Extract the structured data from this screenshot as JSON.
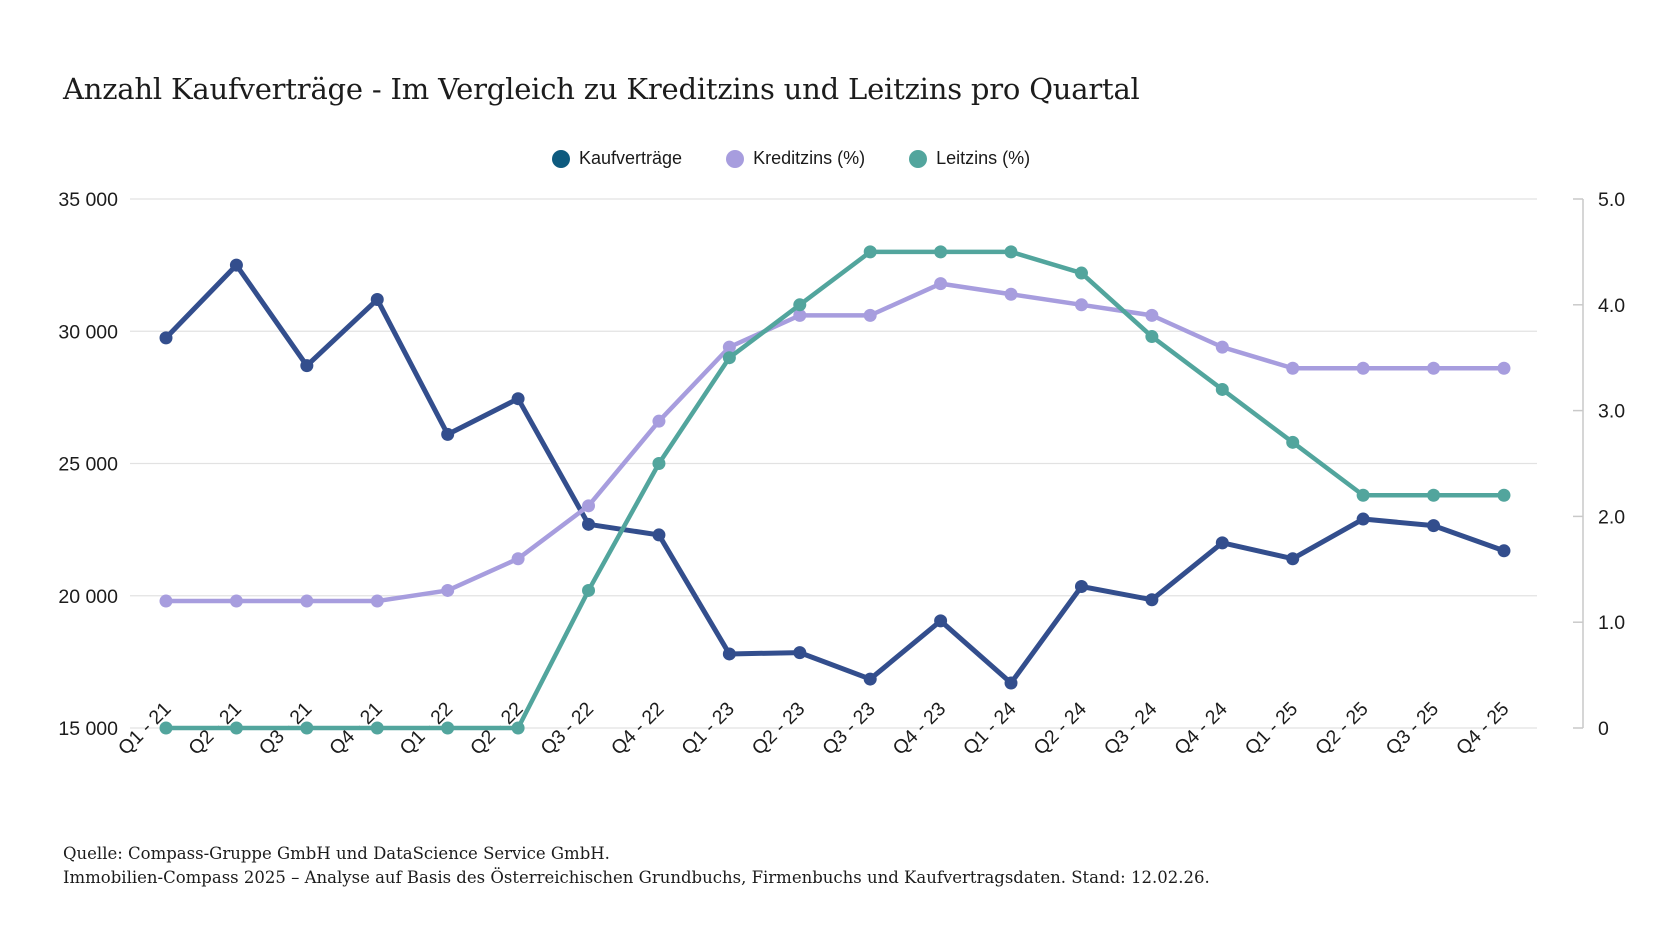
{
  "page": {
    "background": "#ffffff"
  },
  "chart_data": {
    "type": "line",
    "title": "Anzahl Kaufverträge - Im Vergleich zu Kreditzins und Leitzins pro Quartal",
    "categories": [
      "Q1 - 21",
      "Q2 - 21",
      "Q3 - 21",
      "Q4 - 21",
      "Q1 - 22",
      "Q2 - 22",
      "Q3 - 22",
      "Q4 - 22",
      "Q1 - 23",
      "Q2 - 23",
      "Q3 - 23",
      "Q4 - 23",
      "Q1 - 24",
      "Q2 - 24",
      "Q3 - 24",
      "Q4 - 24",
      "Q1 - 25",
      "Q2 - 25",
      "Q3 - 25",
      "Q4 - 25"
    ],
    "series": [
      {
        "name": "Kaufverträge",
        "axis": "left",
        "line_color": "#334e8d",
        "legend_color": "#0e5a7e",
        "values": [
          29750,
          32500,
          28700,
          31200,
          26100,
          27450,
          22700,
          22300,
          17800,
          17850,
          16850,
          19050,
          16700,
          20350,
          19850,
          22000,
          21400,
          22900,
          22650,
          21700
        ]
      },
      {
        "name": "Kreditzins (%)",
        "axis": "right",
        "line_color": "#a79dde",
        "legend_color": "#a79dde",
        "values": [
          1.2,
          1.2,
          1.2,
          1.2,
          1.3,
          1.6,
          2.1,
          2.9,
          3.6,
          3.9,
          3.9,
          4.2,
          4.1,
          4.0,
          3.9,
          3.6,
          3.4,
          3.4,
          3.4,
          3.4
        ]
      },
      {
        "name": "Leitzins (%)",
        "axis": "right",
        "line_color": "#52a59d",
        "legend_color": "#52a59d",
        "values": [
          0,
          0,
          0,
          0,
          0,
          0,
          1.3,
          2.5,
          3.5,
          4.0,
          4.5,
          4.5,
          4.5,
          4.3,
          3.7,
          3.2,
          2.7,
          2.2,
          2.2,
          2.2
        ]
      }
    ],
    "left_axis": {
      "min": 15000,
      "max": 35000,
      "tick_values": [
        35000,
        30000,
        25000,
        20000,
        15000
      ],
      "tick_labels": [
        "35 000",
        "30 000",
        "25 000",
        "20 000",
        "15 000"
      ]
    },
    "right_axis": {
      "min": 0,
      "max": 5,
      "tick_values": [
        5,
        4,
        3,
        2,
        1,
        0
      ],
      "tick_labels": [
        "5.0",
        "4.0",
        "3.0",
        "2.0",
        "1.0",
        "0"
      ]
    },
    "grid": "horizontal-only",
    "legend_position": "top-center",
    "gridline_color": "#e2e2e2",
    "right_axis_line_color": "#c9c9c9",
    "text_color": "#1c1c1c"
  },
  "footer": {
    "line1": "Quelle: Compass-Gruppe GmbH und DataScience Service GmbH.",
    "line2": "Immobilien-Compass 2025 – Analyse auf Basis des Österreichischen Grundbuchs, Firmenbuchs und Kaufvertragsdaten. Stand: 12.02.26."
  }
}
